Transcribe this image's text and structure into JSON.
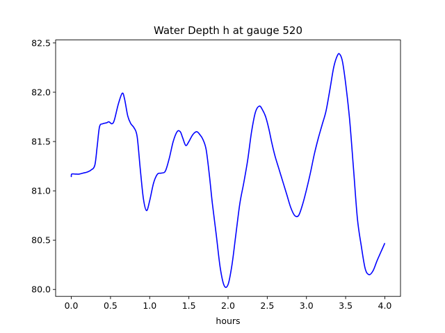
{
  "chart_data": {
    "type": "line",
    "title": "Water Depth h at gauge 520",
    "xlabel": "hours",
    "ylabel": "",
    "xlim": [
      -0.2,
      4.2
    ],
    "ylim": [
      79.93,
      82.53
    ],
    "xticks": [
      0.0,
      0.5,
      1.0,
      1.5,
      2.0,
      2.5,
      3.0,
      3.5,
      4.0
    ],
    "xtick_labels": [
      "0.0",
      "0.5",
      "1.0",
      "1.5",
      "2.0",
      "2.5",
      "3.0",
      "3.5",
      "4.0"
    ],
    "yticks": [
      80.0,
      80.5,
      81.0,
      81.5,
      82.0,
      82.5
    ],
    "ytick_labels": [
      "80.0",
      "80.5",
      "81.0",
      "81.5",
      "82.0",
      "82.5"
    ],
    "grid": false,
    "legend": "none",
    "series": [
      {
        "color": "#0000ff",
        "x": [
          0.0,
          0.005,
          0.05,
          0.1,
          0.15,
          0.2,
          0.25,
          0.3,
          0.33,
          0.36,
          0.4,
          0.45,
          0.48,
          0.52,
          0.55,
          0.6,
          0.65,
          0.68,
          0.72,
          0.76,
          0.8,
          0.84,
          0.88,
          0.92,
          0.96,
          1.0,
          1.05,
          1.1,
          1.15,
          1.2,
          1.25,
          1.3,
          1.35,
          1.39,
          1.42,
          1.46,
          1.5,
          1.55,
          1.6,
          1.64,
          1.68,
          1.72,
          1.76,
          1.8,
          1.85,
          1.9,
          1.95,
          2.0,
          2.05,
          2.1,
          2.15,
          2.2,
          2.25,
          2.3,
          2.35,
          2.4,
          2.44,
          2.48,
          2.52,
          2.56,
          2.6,
          2.65,
          2.7,
          2.75,
          2.8,
          2.85,
          2.9,
          2.95,
          3.0,
          3.05,
          3.1,
          3.15,
          3.2,
          3.25,
          3.3,
          3.35,
          3.4,
          3.43,
          3.46,
          3.5,
          3.55,
          3.6,
          3.65,
          3.7,
          3.75,
          3.8,
          3.85,
          3.9,
          3.95,
          4.0
        ],
        "y": [
          81.14,
          81.17,
          81.17,
          81.17,
          81.18,
          81.19,
          81.21,
          81.26,
          81.45,
          81.65,
          81.68,
          81.69,
          81.7,
          81.68,
          81.72,
          81.88,
          81.99,
          81.93,
          81.76,
          81.68,
          81.64,
          81.55,
          81.22,
          80.92,
          80.8,
          80.9,
          81.08,
          81.17,
          81.18,
          81.2,
          81.33,
          81.5,
          81.6,
          81.6,
          81.54,
          81.46,
          81.5,
          81.57,
          81.6,
          81.57,
          81.52,
          81.42,
          81.17,
          80.87,
          80.55,
          80.22,
          80.04,
          80.05,
          80.25,
          80.56,
          80.87,
          81.08,
          81.31,
          81.6,
          81.8,
          81.86,
          81.82,
          81.75,
          81.63,
          81.48,
          81.35,
          81.22,
          81.09,
          80.96,
          80.83,
          80.75,
          80.75,
          80.86,
          81.01,
          81.18,
          81.37,
          81.53,
          81.67,
          81.81,
          82.03,
          82.26,
          82.38,
          82.38,
          82.31,
          82.09,
          81.73,
          81.23,
          80.72,
          80.44,
          80.21,
          80.15,
          80.19,
          80.29,
          80.38,
          80.47
        ]
      }
    ]
  }
}
